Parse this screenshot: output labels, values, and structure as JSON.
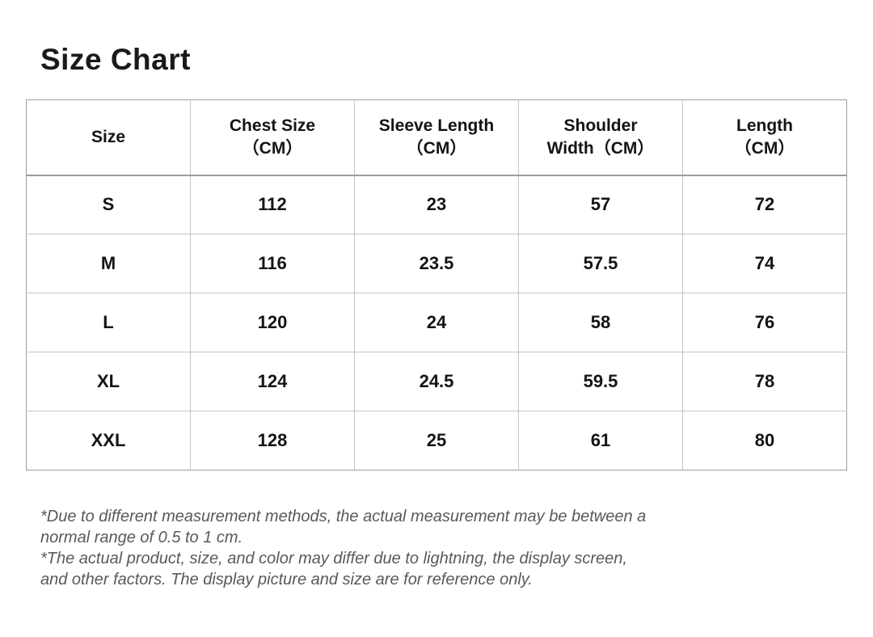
{
  "page": {
    "title": "Size Chart",
    "background_color": "#ffffff"
  },
  "colors": {
    "title_text": "#1a1a1a",
    "table_text": "#141414",
    "border_outer": "#9d9d9d",
    "border_inner": "#c4c4c4",
    "note_text": "#59595b"
  },
  "table": {
    "columns": [
      {
        "id": "size",
        "line1": "Size",
        "line2": ""
      },
      {
        "id": "chest",
        "line1": "Chest Size",
        "line2": "（CM）"
      },
      {
        "id": "sleeve",
        "line1": "Sleeve Length",
        "line2": "（CM）"
      },
      {
        "id": "shoulder",
        "line1": "Shoulder",
        "line2": "Width（CM）"
      },
      {
        "id": "length",
        "line1": "Length",
        "line2": "（CM）"
      }
    ],
    "rows": [
      {
        "size": "S",
        "chest": "112",
        "sleeve": "23",
        "shoulder": "57",
        "length": "72"
      },
      {
        "size": "M",
        "chest": "116",
        "sleeve": "23.5",
        "shoulder": "57.5",
        "length": "74"
      },
      {
        "size": "L",
        "chest": "120",
        "sleeve": "24",
        "shoulder": "58",
        "length": "76"
      },
      {
        "size": "XL",
        "chest": "124",
        "sleeve": "24.5",
        "shoulder": "59.5",
        "length": "78"
      },
      {
        "size": "XXL",
        "chest": "128",
        "sleeve": "25",
        "shoulder": "61",
        "length": "80"
      }
    ]
  },
  "notes": {
    "lines": [
      "*Due to different measurement methods, the actual measurement may be between a",
      "normal range of 0.5 to 1 cm.",
      "*The actual product, size, and color may differ due to lightning, the display screen,",
      "and other factors. The display picture and size are for reference only."
    ]
  }
}
